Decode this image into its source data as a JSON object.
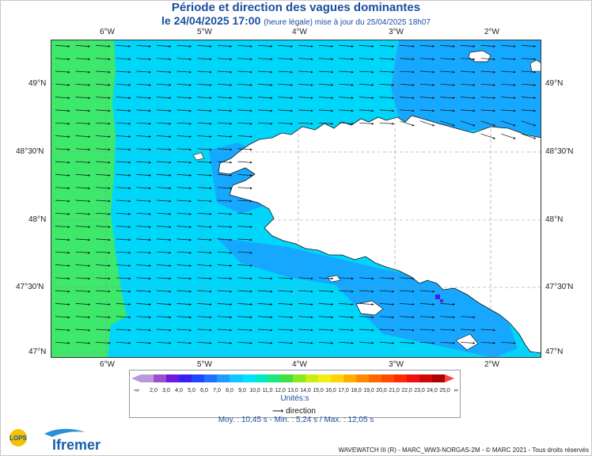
{
  "header": {
    "title": "Période et direction des vagues dominantes",
    "date": "le 24/04/2025 17:00",
    "note": "(heure légale) mise à jour du 25/04/2025 18h07"
  },
  "axes": {
    "lon_labels": [
      "6°W",
      "5°W",
      "4°W",
      "3°W",
      "2°W"
    ],
    "lat_labels": [
      "49°N",
      "48°30'N",
      "48°N",
      "47°30'N",
      "47°N"
    ],
    "lon_range": [
      -6.6,
      -1.55
    ],
    "lat_range": [
      46.97,
      49.35
    ],
    "grid": true
  },
  "legend": {
    "values": [
      "2,0",
      "3,0",
      "4,0",
      "5,0",
      "6,0",
      "7,0",
      "8,0",
      "9,0",
      "10,0",
      "11,0",
      "12,0",
      "13,0",
      "14,0",
      "15,0",
      "16,0",
      "17,0",
      "18,0",
      "19,0",
      "20,0",
      "21,0",
      "22,0",
      "23,0",
      "24,0",
      "25,0"
    ],
    "lower_symbol": "-∞",
    "upper_symbol": "∞",
    "colors": [
      "#b89ad8",
      "#9b4fd0",
      "#6f18e0",
      "#3a20f0",
      "#1e46ff",
      "#1e72ff",
      "#1e9cff",
      "#12c6ff",
      "#00e0ff",
      "#00e8c8",
      "#18e880",
      "#40e040",
      "#8ae81e",
      "#c8ee14",
      "#f0f010",
      "#ffd20a",
      "#ffae00",
      "#ff8a00",
      "#ff6800",
      "#ff4a00",
      "#ff2a00",
      "#f01010",
      "#d00808",
      "#b00000",
      "#ff4040"
    ],
    "unit": "Unités:s",
    "direction_label": "direction"
  },
  "stats": "Moy. : 10,45 s   -   Min. : 5,24 s / Max. : 12,05 s",
  "footer": "WAVEWATCH III (R) - MARC_WW3-NORGAS-2M - © MARC 2021 - Tous droits réservés",
  "logos": {
    "lops": "LOPS",
    "ifremer": "Ifremer"
  },
  "field": {
    "dominant_direction": "toward east (westerly swell)",
    "west_band_period_s": 12,
    "open_sea_period_s": 11,
    "coastal_period_s": 10
  }
}
